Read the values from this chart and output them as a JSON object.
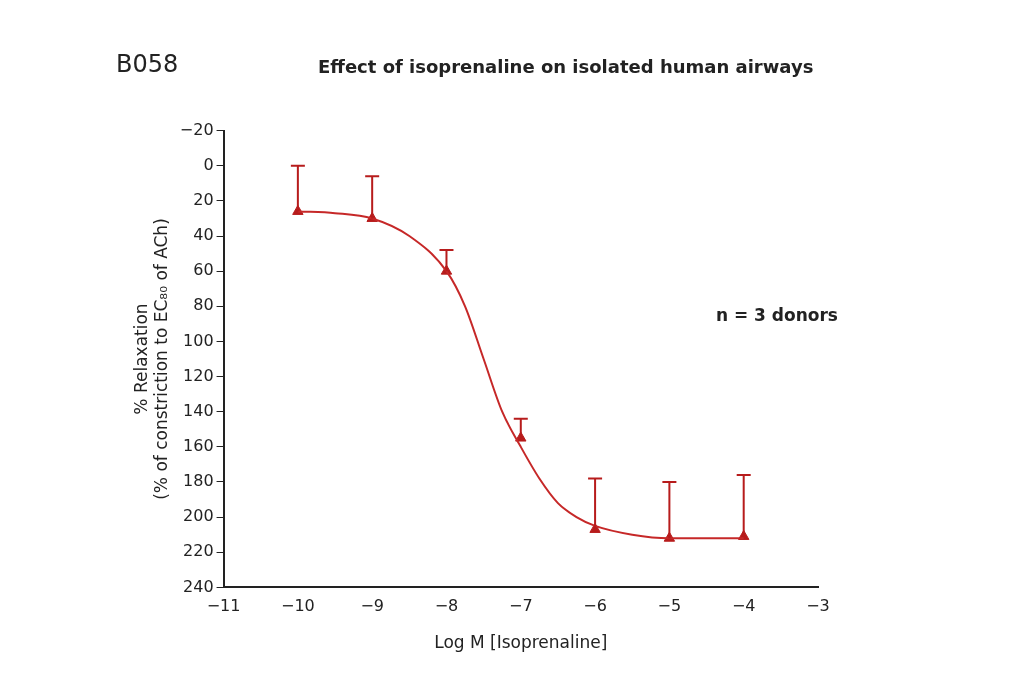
{
  "chart_data": {
    "type": "scatter",
    "title": "Effect of isoprenaline on isolated human airways",
    "xlabel": "Log M [Isoprenaline]",
    "ylabel": "% Relaxation\n(% of constriction to EC₈₀ of ACh)",
    "annotations": [
      "B058",
      "n = 3 donors"
    ],
    "series": [
      {
        "type": "line",
        "color": "#c62828",
        "marker": "none",
        "x": [
          -10,
          -9.5,
          -9,
          -8.5,
          -8,
          -7.75,
          -7.5,
          -7.25,
          -7,
          -6.75,
          -6.5,
          -6.25,
          -6,
          -5.5,
          -5,
          -4
        ],
        "values": [
          26,
          27,
          30,
          40,
          60,
          80,
          110,
          140,
          160,
          178,
          192,
          200,
          205,
          210,
          212,
          212
        ]
      },
      {
        "type": "scatter",
        "color": "#b71c1c",
        "marker": "triangle",
        "x": [
          -10,
          -9,
          -8,
          -7,
          -6,
          -5,
          -4
        ],
        "values": [
          26,
          30,
          60,
          155,
          207,
          212,
          211
        ],
        "errors": [
          [
            0,
            26
          ],
          [
            6,
            30
          ],
          [
            48,
            60
          ],
          [
            144,
            155
          ],
          [
            178,
            207
          ],
          [
            180,
            212
          ],
          [
            176,
            211
          ]
        ]
      }
    ],
    "xlim": [
      -11,
      -3
    ],
    "xticks": [
      -11,
      -10,
      -9,
      -8,
      -7,
      -6,
      -5,
      -4,
      -3
    ],
    "ylim": [
      240,
      -20
    ],
    "yticks": [
      -20,
      0,
      20,
      40,
      60,
      80,
      100,
      120,
      140,
      160,
      180,
      200,
      220,
      240
    ],
    "grid": false,
    "legend": false
  }
}
